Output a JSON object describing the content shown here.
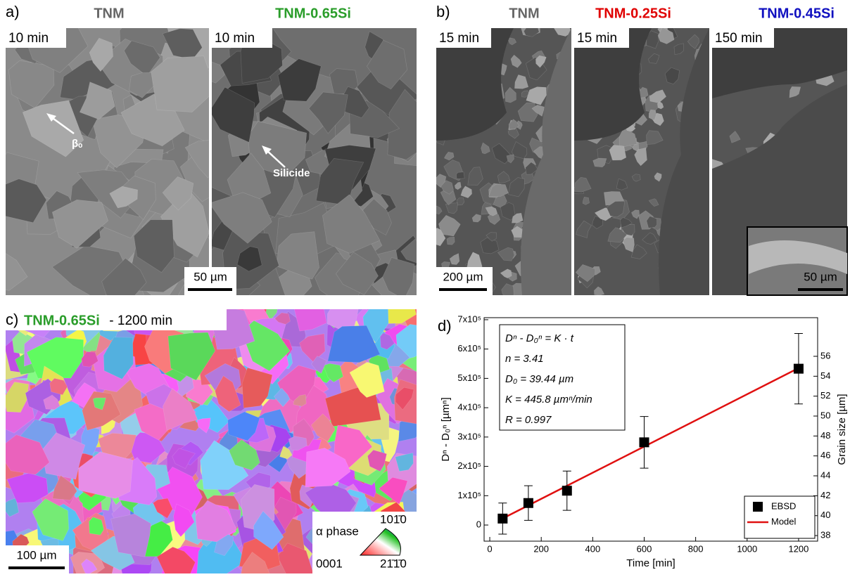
{
  "panels": {
    "a": {
      "label": "a)",
      "samples": [
        "TNM",
        "TNM-0.65Si"
      ],
      "times": [
        "10 min",
        "10 min"
      ],
      "scale_bar": "50 µm",
      "annotations": [
        "βₒ",
        "Silicide"
      ]
    },
    "b": {
      "label": "b)",
      "samples": [
        "TNM",
        "TNM-0.25Si",
        "TNM-0.45Si"
      ],
      "times": [
        "15 min",
        "15 min",
        "150 min"
      ],
      "scale_bar": "200 µm",
      "inset_scale_bar": "50 µm"
    },
    "c": {
      "label": "c)",
      "sample": "TNM-0.65Si",
      "time": " - 1200 min",
      "scale_bar": "100 µm",
      "legend_title": "α phase",
      "legend_corners": [
        "101̄0",
        "0001",
        "21̄1̄0"
      ]
    }
  },
  "chart_data": {
    "type": "scatter",
    "panel_label": "d)",
    "x_label": "Time [min]",
    "y_label": "Dⁿ - D₀ⁿ [µmⁿ]",
    "y2_label": "Grain size [µm]",
    "annotations": [
      "Dⁿ - D₀ⁿ = K · t",
      "n = 3.41",
      "D₀ = 39.44 µm",
      "K = 445.8 µmⁿ/min",
      "R = 0.997"
    ],
    "xlim": [
      -22,
      1274
    ],
    "xticks": [
      0,
      200,
      400,
      600,
      800,
      1000,
      1200
    ],
    "ylim": [
      -55000,
      707000
    ],
    "yticks": [
      0,
      {
        "value": 100000,
        "label": "1x10⁵"
      },
      {
        "value": 200000,
        "label": "2x10⁵"
      },
      {
        "value": 300000,
        "label": "3x10⁵"
      },
      {
        "value": 400000,
        "label": "4x10⁵"
      },
      {
        "value": 500000,
        "label": "5x10⁵"
      },
      {
        "value": 600000,
        "label": "6x10⁵"
      },
      {
        "value": 700000,
        "label": "7x10⁵"
      }
    ],
    "y2lim": [
      37.44,
      59.88
    ],
    "y2ticks": [
      38,
      40,
      42,
      44,
      46,
      48,
      50,
      52,
      54,
      56
    ],
    "legend": "lower right",
    "series": [
      {
        "name": "EBSD",
        "color": "#000000",
        "style": "markers",
        "x": [
          50,
          150,
          300,
          600,
          1200
        ],
        "values": [
          22000,
          75000,
          117000,
          282000,
          533000
        ],
        "errors": [
          53000,
          59000,
          67000,
          88000,
          120000
        ]
      },
      {
        "name": "Model",
        "color": "#e01010",
        "style": "line",
        "x": [
          50,
          1200
        ],
        "values": [
          22290,
          534960
        ]
      }
    ]
  }
}
